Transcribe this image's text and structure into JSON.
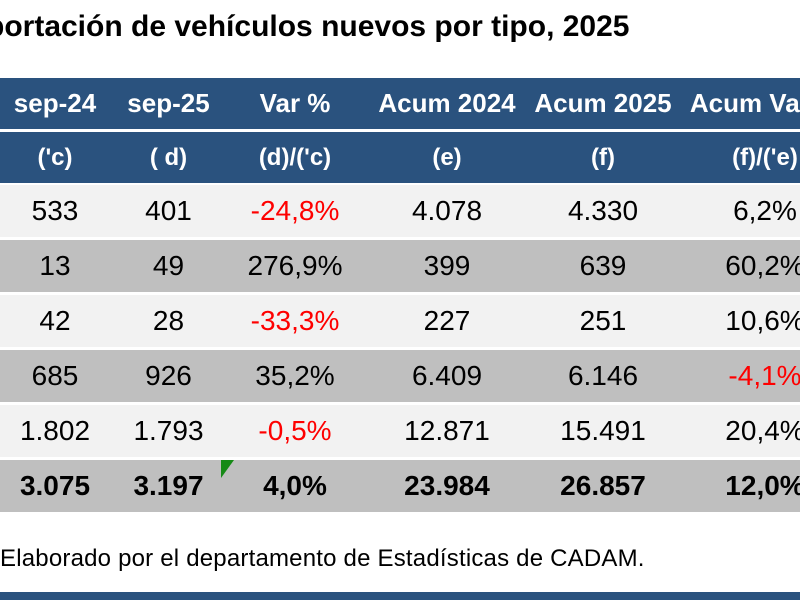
{
  "title": "portación de vehículos nuevos por tipo, 2025",
  "footer": "Elaborado por el departamento de Estadísticas de CADAM.",
  "table": {
    "columns": [
      {
        "label": "sep-24",
        "sub": "('c)"
      },
      {
        "label": "sep-25",
        "sub": "( d)"
      },
      {
        "label": "Var %",
        "sub": "(d)/('c)"
      },
      {
        "label": "Acum 2024",
        "sub": "(e)"
      },
      {
        "label": "Acum 2025",
        "sub": "(f)"
      },
      {
        "label": "Acum Var %",
        "sub": "(f)/('e)"
      }
    ],
    "rows": [
      {
        "cells": [
          "533",
          "401",
          "-24,8%",
          "4.078",
          "4.330",
          "6,2%"
        ]
      },
      {
        "cells": [
          "13",
          "49",
          "276,9%",
          "399",
          "639",
          "60,2%"
        ]
      },
      {
        "cells": [
          "42",
          "28",
          "-33,3%",
          "227",
          "251",
          "10,6%"
        ]
      },
      {
        "cells": [
          "685",
          "926",
          "35,2%",
          "6.409",
          "6.146",
          "-4,1%"
        ]
      },
      {
        "cells": [
          "1.802",
          "1.793",
          "-0,5%",
          "12.871",
          "15.491",
          "20,4%"
        ]
      },
      {
        "cells": [
          "3.075",
          "3.197",
          "4,0%",
          "23.984",
          "26.857",
          "12,0%"
        ]
      }
    ],
    "total_row_index": 5
  },
  "icons": {
    "flag": "green-corner-flag"
  },
  "colors": {
    "header_bg": "#2A527E",
    "header_text": "#FFFFFF",
    "row_light": "#F2F2F2",
    "row_gray": "#BFBFBF",
    "negative": "#FE0000",
    "flag_green": "#178A17",
    "text": "#000000"
  },
  "chart_data": {
    "type": "table",
    "title": "portación de vehículos nuevos por tipo, 2025",
    "columns": [
      "sep-24 ('c)",
      "sep-25 ( d)",
      "Var % (d)/('c)",
      "Acum 2024 (e)",
      "Acum 2025 (f)",
      "Acum Var % (f)/('e)"
    ],
    "rows": [
      [
        533,
        401,
        "-24,8%",
        4078,
        4330,
        "6,2%"
      ],
      [
        13,
        49,
        "276,9%",
        399,
        639,
        "60,2%"
      ],
      [
        42,
        28,
        "-33,3%",
        227,
        251,
        "10,6%"
      ],
      [
        685,
        926,
        "35,2%",
        6409,
        6146,
        "-4,1%"
      ],
      [
        1802,
        1793,
        "-0,5%",
        12871,
        15491,
        "20,4%"
      ],
      [
        3075,
        3197,
        "4,0%",
        23984,
        26857,
        "12,0%"
      ]
    ],
    "notes": "Elaborado por el departamento de Estadísticas de CADAM."
  }
}
